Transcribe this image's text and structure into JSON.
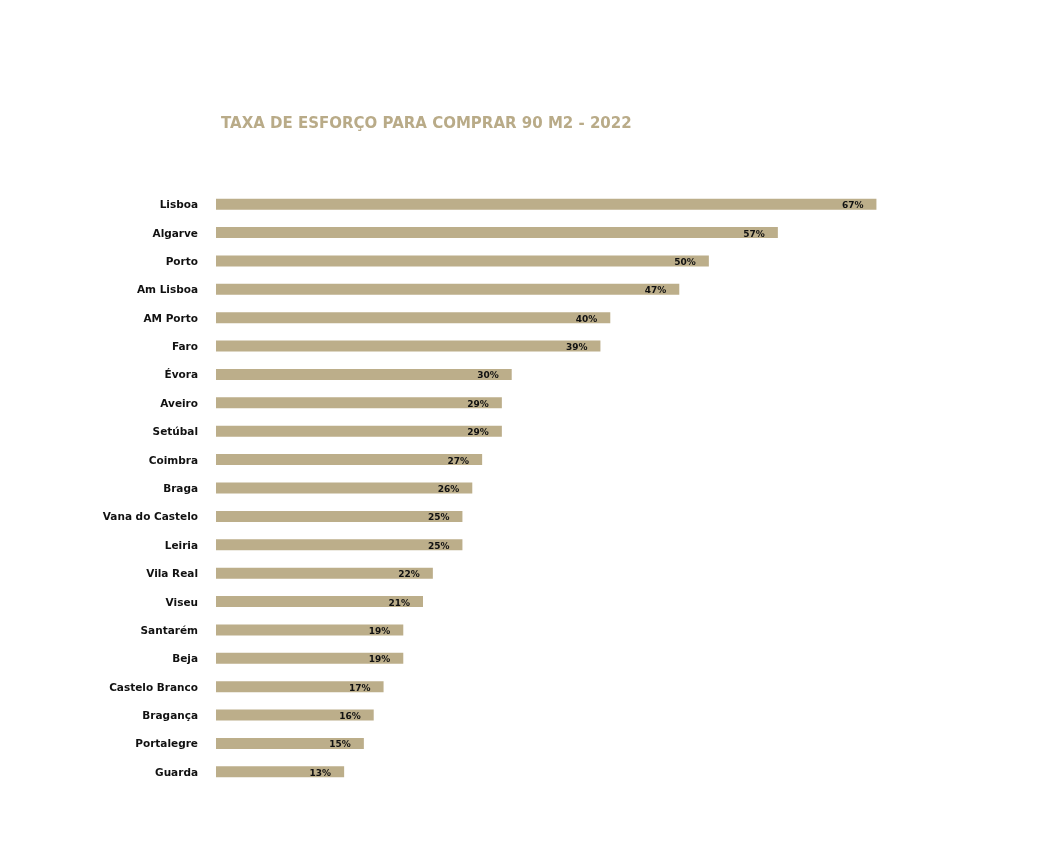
{
  "chart_data": {
    "type": "bar",
    "orientation": "horizontal",
    "title": "TAXA DE ESFORÇO PARA COMPRAR 90 M2 - 2022",
    "categories": [
      "Lisboa",
      "Algarve",
      "Porto",
      "Am Lisboa",
      "AM Porto",
      "Faro",
      "Évora",
      "Aveiro",
      "Setúbal",
      "Coimbra",
      "Braga",
      "Vana do Castelo",
      "Leiria",
      "Vila Real",
      "Viseu",
      "Santarém",
      "Beja",
      "Castelo Branco",
      "Bragança",
      "Portalegre",
      "Guarda"
    ],
    "values": [
      67,
      57,
      50,
      47,
      40,
      39,
      30,
      29,
      29,
      27,
      26,
      25,
      25,
      22,
      21,
      19,
      19,
      17,
      16,
      15,
      13
    ],
    "value_labels": [
      "67%",
      "57%",
      "50%",
      "47%",
      "40%",
      "39%",
      "30%",
      "29%",
      "29%",
      "27%",
      "26%",
      "25%",
      "25%",
      "22%",
      "21%",
      "19%",
      "19%",
      "17%",
      "16%",
      "15%",
      "13%"
    ],
    "color": "#bcae8a",
    "grid": false
  }
}
